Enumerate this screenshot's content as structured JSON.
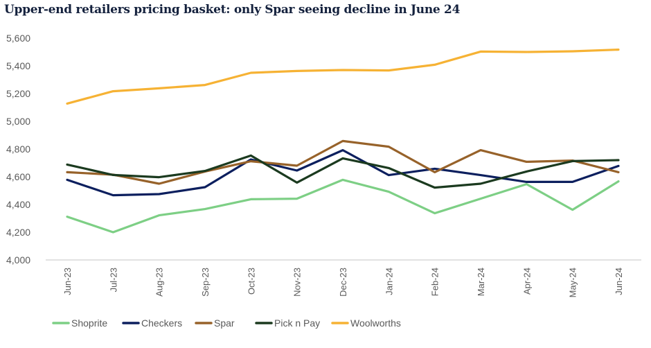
{
  "title": "Upper-end retailers pricing basket: only Spar seeing decline in June 24",
  "chart_data": {
    "type": "line",
    "title": "Upper-end retailers pricing basket: only Spar seeing decline in June 24",
    "xlabel": "",
    "ylabel": "",
    "ylim": [
      4000,
      5600
    ],
    "yticks": [
      4000,
      4200,
      4400,
      4600,
      4800,
      5000,
      5200,
      5400,
      5600
    ],
    "ytick_labels": [
      "4,000",
      "4,200",
      "4,400",
      "4,600",
      "4,800",
      "5,000",
      "5,200",
      "5,400",
      "5,600"
    ],
    "grid": false,
    "legend_position": "bottom",
    "categories": [
      "Jun-23",
      "Jul-23",
      "Aug-23",
      "Sep-23",
      "Oct-23",
      "Nov-23",
      "Dec-23",
      "Jan-24",
      "Feb-24",
      "Mar-24",
      "Apr-24",
      "May-24",
      "Jun-24"
    ],
    "series": [
      {
        "name": "Shoprite",
        "color": "#7dcf85",
        "values": [
          4312,
          4200,
          4322,
          4367,
          4438,
          4442,
          4578,
          4492,
          4337,
          4442,
          4547,
          4362,
          4567
        ]
      },
      {
        "name": "Checkers",
        "color": "#0c1f5e",
        "values": [
          4578,
          4467,
          4475,
          4525,
          4725,
          4645,
          4792,
          4612,
          4658,
          4612,
          4563,
          4563,
          4678
        ]
      },
      {
        "name": "Spar",
        "color": "#97622a",
        "values": [
          4633,
          4615,
          4550,
          4638,
          4712,
          4680,
          4858,
          4817,
          4633,
          4792,
          4708,
          4717,
          4633
        ]
      },
      {
        "name": "Pick n Pay",
        "color": "#1b3a1f",
        "values": [
          4688,
          4613,
          4597,
          4642,
          4753,
          4558,
          4733,
          4663,
          4522,
          4550,
          4638,
          4713,
          4720
        ]
      },
      {
        "name": "Woolworths",
        "color": "#f6b234",
        "values": [
          5128,
          5217,
          5238,
          5262,
          5350,
          5363,
          5370,
          5367,
          5408,
          5503,
          5500,
          5505,
          5517
        ]
      }
    ]
  }
}
